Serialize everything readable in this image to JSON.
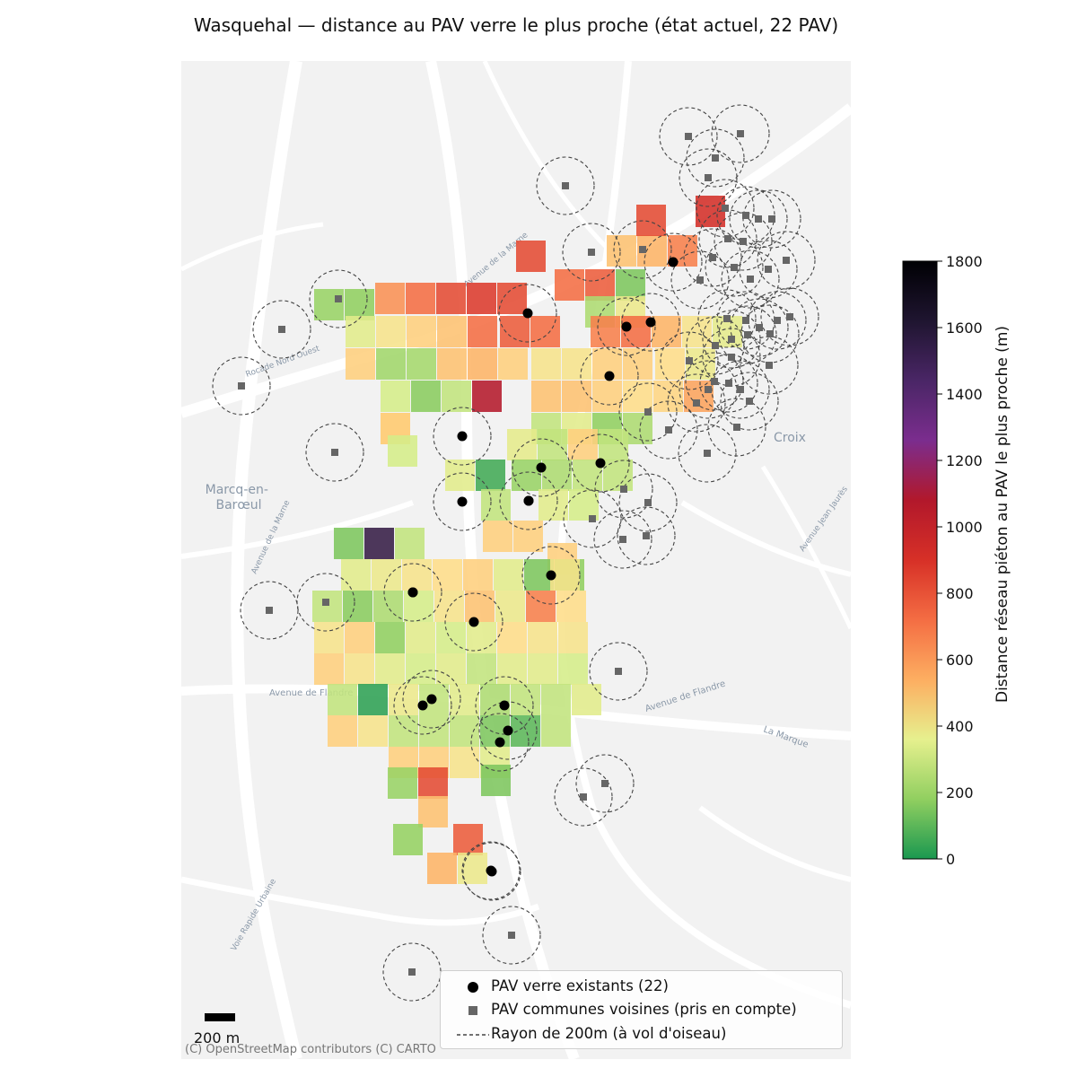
{
  "title": "Wasquehal — distance au PAV verre le plus proche (état actuel, 22 PAV)",
  "map_labels": {
    "croix": "Croix",
    "marcq": "Marcq-en-\nBarœul",
    "avenue_flandre_left": "Avenue de Flandre",
    "avenue_flandre_right": "Avenue de Flandre",
    "la_marque": "La Marque",
    "rocade": "Rocade Nord Ouest",
    "voie_rapide": "Voie Rapide Urbaine",
    "av_marne": "Avenue de la Marne",
    "av_marne_top": "Avenue de la Marne",
    "av_jean_jaures": "Avenue Jean Jaurès"
  },
  "colorbar": {
    "label": "Distance réseau piéton au PAV le plus proche (m)",
    "ticks": [
      "0",
      "200",
      "400",
      "600",
      "800",
      "1000",
      "1200",
      "1400",
      "1600",
      "1800"
    ],
    "min": 0,
    "max": 1800,
    "colormap": "Spectral_r",
    "stops": [
      "#1a9850",
      "#91cf60",
      "#d9ef8b",
      "#fee08b",
      "#fdae61",
      "#f46d43",
      "#d73027",
      "#b2182b",
      "#7b2d8e",
      "#2d1b3d",
      "#000004"
    ]
  },
  "legend": {
    "items": [
      {
        "symbol": "black-dot",
        "label": "PAV verre existants (22)"
      },
      {
        "symbol": "grey-square",
        "label": "PAV communes voisines (pris en compte)"
      },
      {
        "symbol": "dashed-line",
        "label": "Rayon de 200m (à vol d'oiseau)"
      }
    ]
  },
  "scale_bar": {
    "label": "200 m"
  },
  "attribution": "(C) OpenStreetMap contributors (C) CARTO",
  "colors": {
    "pav_existing": "#000000",
    "pav_neighbor": "#666666",
    "radius_circle": "#444444",
    "basemap": "#f2f2f2"
  },
  "map_data": {
    "pav_existing_count": 22,
    "radius_m": 200,
    "cell_distances_m": [
      200,
      180,
      800,
      900,
      1000,
      1050,
      1000,
      1000,
      650,
      700,
      850,
      1000,
      1100,
      900,
      950,
      150,
      250,
      450,
      400,
      500,
      600,
      650,
      900,
      950,
      900,
      850,
      900,
      700,
      500,
      420,
      600,
      220,
      230,
      650,
      700,
      600,
      500,
      500,
      600,
      600,
      550,
      450,
      350,
      170,
      300,
      1250,
      650,
      650,
      600,
      550,
      580,
      750,
      650,
      600,
      300,
      400,
      180,
      250,
      350,
      420,
      300,
      600,
      300,
      400,
      60,
      200,
      250,
      300,
      300,
      300,
      400,
      350,
      600,
      600,
      600,
      150,
      1600,
      300,
      400,
      450,
      500,
      550,
      600,
      400,
      150,
      180,
      500,
      300,
      170,
      250,
      350,
      500,
      650,
      450,
      850,
      550,
      500,
      600,
      180,
      400,
      350,
      400,
      550,
      500,
      500,
      600,
      500,
      400,
      350,
      400,
      300,
      400,
      400,
      350,
      300,
      30,
      450,
      300,
      400,
      250,
      300,
      300,
      400,
      600,
      500,
      300,
      300,
      300,
      150,
      100,
      300,
      600,
      600,
      500,
      400,
      150,
      200,
      1000,
      650,
      190,
      950,
      700,
      450,
      650,
      200,
      450,
      400,
      200,
      600,
      500,
      400,
      250,
      350,
      450,
      150,
      200,
      200,
      400,
      300,
      250,
      300,
      400
    ]
  }
}
